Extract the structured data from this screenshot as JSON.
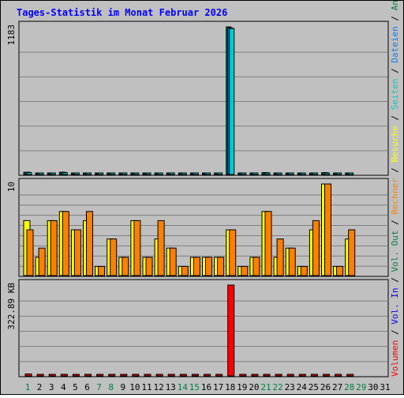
{
  "title": "Tages-Statistik im Monat Februar 2026",
  "legend": [
    {
      "label": "Volumen",
      "color": "#ff0000"
    },
    {
      "label": "Vol. In",
      "color": "#0000ff"
    },
    {
      "label": "Vol. Out",
      "color": "#008040"
    },
    {
      "label": "Rechner",
      "color": "#ff8000"
    },
    {
      "label": "Besuche",
      "color": "#ffff00"
    },
    {
      "label": "Seiten",
      "color": "#00cccc"
    },
    {
      "label": "Dateien",
      "color": "#0080ff"
    },
    {
      "label": "Anfragen",
      "color": "#008040"
    }
  ],
  "day_labels": [
    "1",
    "2",
    "3",
    "4",
    "5",
    "6",
    "7",
    "8",
    "9",
    "10",
    "11",
    "12",
    "13",
    "14",
    "15",
    "16",
    "17",
    "18",
    "19",
    "20",
    "21",
    "22",
    "23",
    "24",
    "25",
    "26",
    "27",
    "28",
    "29",
    "30",
    "31"
  ],
  "weekend_days": [
    1,
    7,
    8,
    14,
    15,
    21,
    22,
    28,
    29
  ],
  "colors": {
    "background": "#c0c0c0",
    "plot_bg": "#c0c0c0",
    "title": "#0000ff",
    "weekday_label": "#000000",
    "weekend_label": "#008040",
    "hits": "#008040",
    "files": "#0080ff",
    "pages": "#00cccc",
    "visits": "#ffff00",
    "sites": "#ff8000",
    "kbytes": "#ff0000"
  },
  "chart_data": [
    {
      "type": "bar",
      "panel": "requests",
      "ymax_label": "1183",
      "ylim": [
        0,
        1183
      ],
      "x": [
        1,
        2,
        3,
        4,
        5,
        6,
        7,
        8,
        9,
        10,
        11,
        12,
        13,
        14,
        15,
        16,
        17,
        18,
        19,
        20,
        21,
        22,
        23,
        24,
        25,
        26,
        27,
        28,
        29,
        30,
        31
      ],
      "series": [
        {
          "name": "Anfragen",
          "values": [
            18,
            2,
            2,
            18,
            2,
            7,
            2,
            2,
            2,
            2,
            2,
            2,
            7,
            2,
            2,
            2,
            2,
            1183,
            2,
            2,
            15,
            2,
            2,
            2,
            2,
            15,
            2,
            2,
            null,
            null,
            null
          ]
        },
        {
          "name": "Dateien",
          "values": [
            18,
            2,
            2,
            18,
            2,
            7,
            2,
            2,
            2,
            2,
            2,
            2,
            7,
            2,
            2,
            2,
            2,
            1175,
            2,
            2,
            15,
            2,
            2,
            2,
            2,
            15,
            2,
            2,
            null,
            null,
            null
          ]
        },
        {
          "name": "Seiten",
          "values": [
            15,
            1,
            1,
            15,
            1,
            5,
            1,
            1,
            1,
            1,
            1,
            1,
            5,
            1,
            1,
            1,
            1,
            1170,
            1,
            1,
            12,
            1,
            1,
            1,
            1,
            12,
            1,
            1,
            null,
            null,
            null
          ]
        }
      ]
    },
    {
      "type": "bar",
      "panel": "visits",
      "ymax_label": "10",
      "ylim": [
        0,
        10
      ],
      "x": [
        1,
        2,
        3,
        4,
        5,
        6,
        7,
        8,
        9,
        10,
        11,
        12,
        13,
        14,
        15,
        16,
        17,
        18,
        19,
        20,
        21,
        22,
        23,
        24,
        25,
        26,
        27,
        28,
        29,
        30,
        31
      ],
      "series": [
        {
          "name": "Besuche",
          "values": [
            6,
            2,
            6,
            7,
            5,
            6,
            1,
            4,
            2,
            6,
            2,
            4,
            3,
            1,
            2,
            2,
            2,
            5,
            1,
            2,
            7,
            2,
            3,
            1,
            5,
            10,
            1,
            4,
            null,
            null,
            null
          ]
        },
        {
          "name": "Rechner",
          "values": [
            5,
            3,
            6,
            7,
            5,
            7,
            1,
            4,
            2,
            6,
            2,
            6,
            3,
            1,
            2,
            2,
            2,
            5,
            1,
            2,
            7,
            4,
            3,
            1,
            6,
            10,
            1,
            5,
            null,
            null,
            null
          ]
        }
      ]
    },
    {
      "type": "bar",
      "panel": "volume",
      "ymax_label": "322.89 KB",
      "ylim": [
        0,
        322.89
      ],
      "x": [
        1,
        2,
        3,
        4,
        5,
        6,
        7,
        8,
        9,
        10,
        11,
        12,
        13,
        14,
        15,
        16,
        17,
        18,
        19,
        20,
        21,
        22,
        23,
        24,
        25,
        26,
        27,
        28,
        29,
        30,
        31
      ],
      "series": [
        {
          "name": "Volumen",
          "values": [
            7,
            0.5,
            0.5,
            0.5,
            0.5,
            0.5,
            0.5,
            0.5,
            0.5,
            0.5,
            0.5,
            0.5,
            0.5,
            0.5,
            0.5,
            0.5,
            0.5,
            322.89,
            0.5,
            0.5,
            0.5,
            0.5,
            0.5,
            0.5,
            0.5,
            0.5,
            0.5,
            0.5,
            null,
            null,
            null
          ]
        }
      ]
    }
  ]
}
